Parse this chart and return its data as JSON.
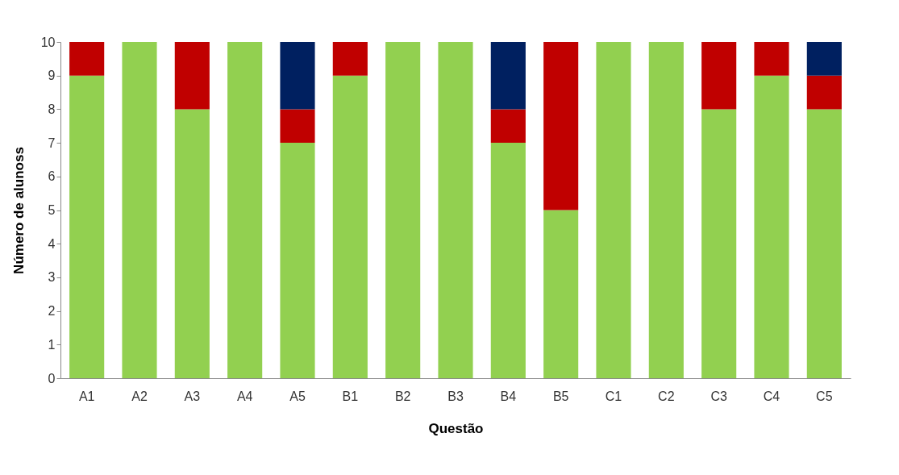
{
  "chart_data": {
    "type": "bar",
    "stacked": true,
    "xlabel": "Questão",
    "ylabel": "Número de alunoss",
    "categories": [
      "A1",
      "A2",
      "A3",
      "A4",
      "A5",
      "B1",
      "B2",
      "B3",
      "B4",
      "B5",
      "C1",
      "C2",
      "C3",
      "C4",
      "C5"
    ],
    "series": [
      {
        "color": "#92d050",
        "values": [
          9,
          10,
          8,
          10,
          7,
          9,
          10,
          10,
          7,
          5,
          10,
          10,
          8,
          9,
          8
        ]
      },
      {
        "color": "#c00000",
        "values": [
          1,
          0,
          2,
          0,
          1,
          1,
          0,
          0,
          1,
          5,
          0,
          0,
          2,
          1,
          1
        ]
      },
      {
        "color": "#002060",
        "values": [
          0,
          0,
          0,
          0,
          2,
          0,
          0,
          0,
          2,
          0,
          0,
          0,
          0,
          0,
          1
        ]
      }
    ],
    "ylim": [
      0,
      10
    ],
    "yticks": [
      0,
      1,
      2,
      3,
      4,
      5,
      6,
      7,
      8,
      9,
      10
    ],
    "grid": false
  }
}
